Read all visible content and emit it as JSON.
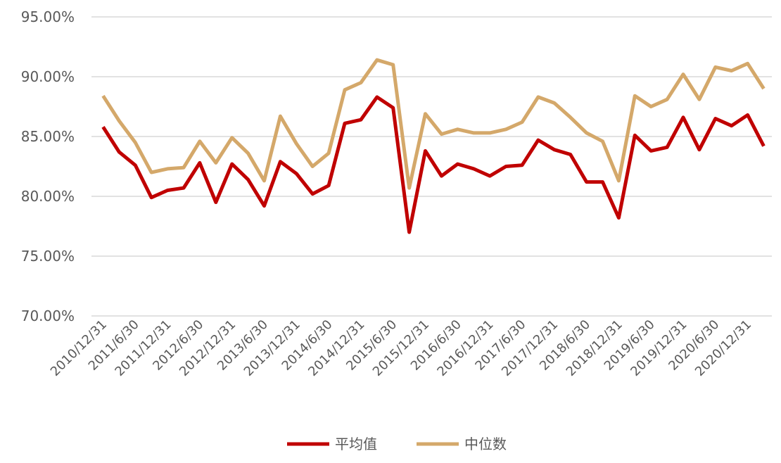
{
  "chart_data": {
    "type": "line",
    "categories": [
      "2010/12/31",
      null,
      "2011/6/30",
      null,
      "2011/12/31",
      null,
      "2012/6/30",
      null,
      "2012/12/31",
      null,
      "2013/6/30",
      null,
      "2013/12/31",
      null,
      "2014/6/30",
      null,
      "2014/12/31",
      null,
      "2015/6/30",
      null,
      "2015/12/31",
      null,
      "2016/6/30",
      null,
      "2016/12/31",
      null,
      "2017/6/30",
      null,
      "2017/12/31",
      null,
      "2018/6/30",
      null,
      "2018/12/31",
      null,
      "2019/6/30",
      null,
      "2019/12/31",
      null,
      "2020/6/30",
      null,
      "2020/12/31",
      null
    ],
    "series": [
      {
        "name": "平均值",
        "color": "#c00000",
        "values": [
          85.8,
          83.7,
          82.6,
          79.9,
          80.5,
          80.7,
          82.8,
          79.5,
          82.7,
          81.4,
          79.2,
          82.9,
          81.9,
          80.2,
          80.9,
          86.1,
          86.4,
          88.3,
          87.4,
          77.0,
          83.8,
          81.7,
          82.7,
          82.3,
          81.7,
          82.5,
          82.6,
          84.7,
          83.9,
          83.5,
          81.2,
          81.2,
          78.2,
          85.1,
          83.8,
          84.1,
          86.6,
          83.9,
          86.5,
          85.9,
          86.8,
          84.2
        ]
      },
      {
        "name": "中位数",
        "color": "#d4a86a",
        "values": [
          88.4,
          86.3,
          84.5,
          82.0,
          82.3,
          82.4,
          84.6,
          82.8,
          84.9,
          83.6,
          81.3,
          86.7,
          84.4,
          82.5,
          83.6,
          88.9,
          89.5,
          91.4,
          91.0,
          80.7,
          86.9,
          85.2,
          85.6,
          85.3,
          85.3,
          85.6,
          86.2,
          88.3,
          87.8,
          86.6,
          85.3,
          84.6,
          81.3,
          88.4,
          87.5,
          88.1,
          90.2,
          88.1,
          90.8,
          90.5,
          91.1,
          89.0
        ]
      }
    ],
    "ylim": [
      70,
      95
    ],
    "yticks": [
      {
        "value": 70,
        "label": "70.00%"
      },
      {
        "value": 75,
        "label": "75.00%"
      },
      {
        "value": 80,
        "label": "80.00%"
      },
      {
        "value": 85,
        "label": "85.00%"
      },
      {
        "value": 90,
        "label": "90.00%"
      },
      {
        "value": 95,
        "label": "95.00%"
      }
    ],
    "grid": true,
    "legend": "bottom"
  }
}
